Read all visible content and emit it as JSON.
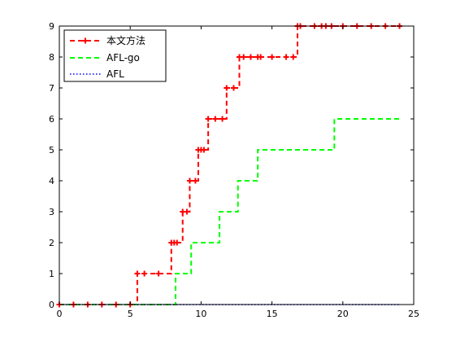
{
  "chart_data": {
    "type": "line",
    "title": "",
    "xlabel": "",
    "ylabel": "",
    "xlim": [
      0,
      25
    ],
    "ylim": [
      0,
      9
    ],
    "xticks": [
      0,
      5,
      10,
      15,
      20,
      25
    ],
    "yticks": [
      0,
      1,
      2,
      3,
      4,
      5,
      6,
      7,
      8,
      9
    ],
    "grid": false,
    "legend_position": "top-left",
    "series": [
      {
        "name": "本文方法",
        "color": "#ff0000",
        "line_style": "dashed",
        "marker": "plus",
        "step": true,
        "x": [
          0.0,
          1.0,
          2.0,
          3.0,
          4.0,
          5.0,
          5.5,
          6.0,
          7.0,
          7.9,
          8.1,
          8.3,
          8.7,
          9.0,
          9.2,
          9.6,
          9.8,
          10.0,
          10.2,
          10.5,
          11.0,
          11.5,
          11.8,
          12.3,
          12.7,
          13.0,
          13.5,
          14.0,
          14.2,
          15.0,
          16.0,
          16.5,
          16.8,
          17.0,
          18.0,
          18.5,
          18.8,
          19.2,
          20.0,
          21.0,
          22.0,
          23.0,
          24.0
        ],
        "y": [
          0,
          0,
          0,
          0,
          0,
          0,
          1,
          1,
          1,
          2,
          2,
          2,
          3,
          3,
          4,
          4,
          5,
          5,
          5,
          6,
          6,
          6,
          7,
          7,
          8,
          8,
          8,
          8,
          8,
          8,
          8,
          8,
          9,
          9,
          9,
          9,
          9,
          9,
          9,
          9,
          9,
          9,
          9
        ]
      },
      {
        "name": "AFL-go",
        "color": "#00ff00",
        "line_style": "dashed",
        "marker": "none",
        "step": true,
        "x": [
          0,
          8.2,
          9.3,
          11.3,
          12.6,
          14.0,
          19.4,
          24.0
        ],
        "y": [
          0,
          1,
          2,
          3,
          4,
          5,
          6,
          6
        ]
      },
      {
        "name": "AFL",
        "color": "#0000ff",
        "line_style": "dotted",
        "marker": "none",
        "step": false,
        "x": [
          0,
          24.0
        ],
        "y": [
          0,
          0
        ]
      }
    ]
  }
}
